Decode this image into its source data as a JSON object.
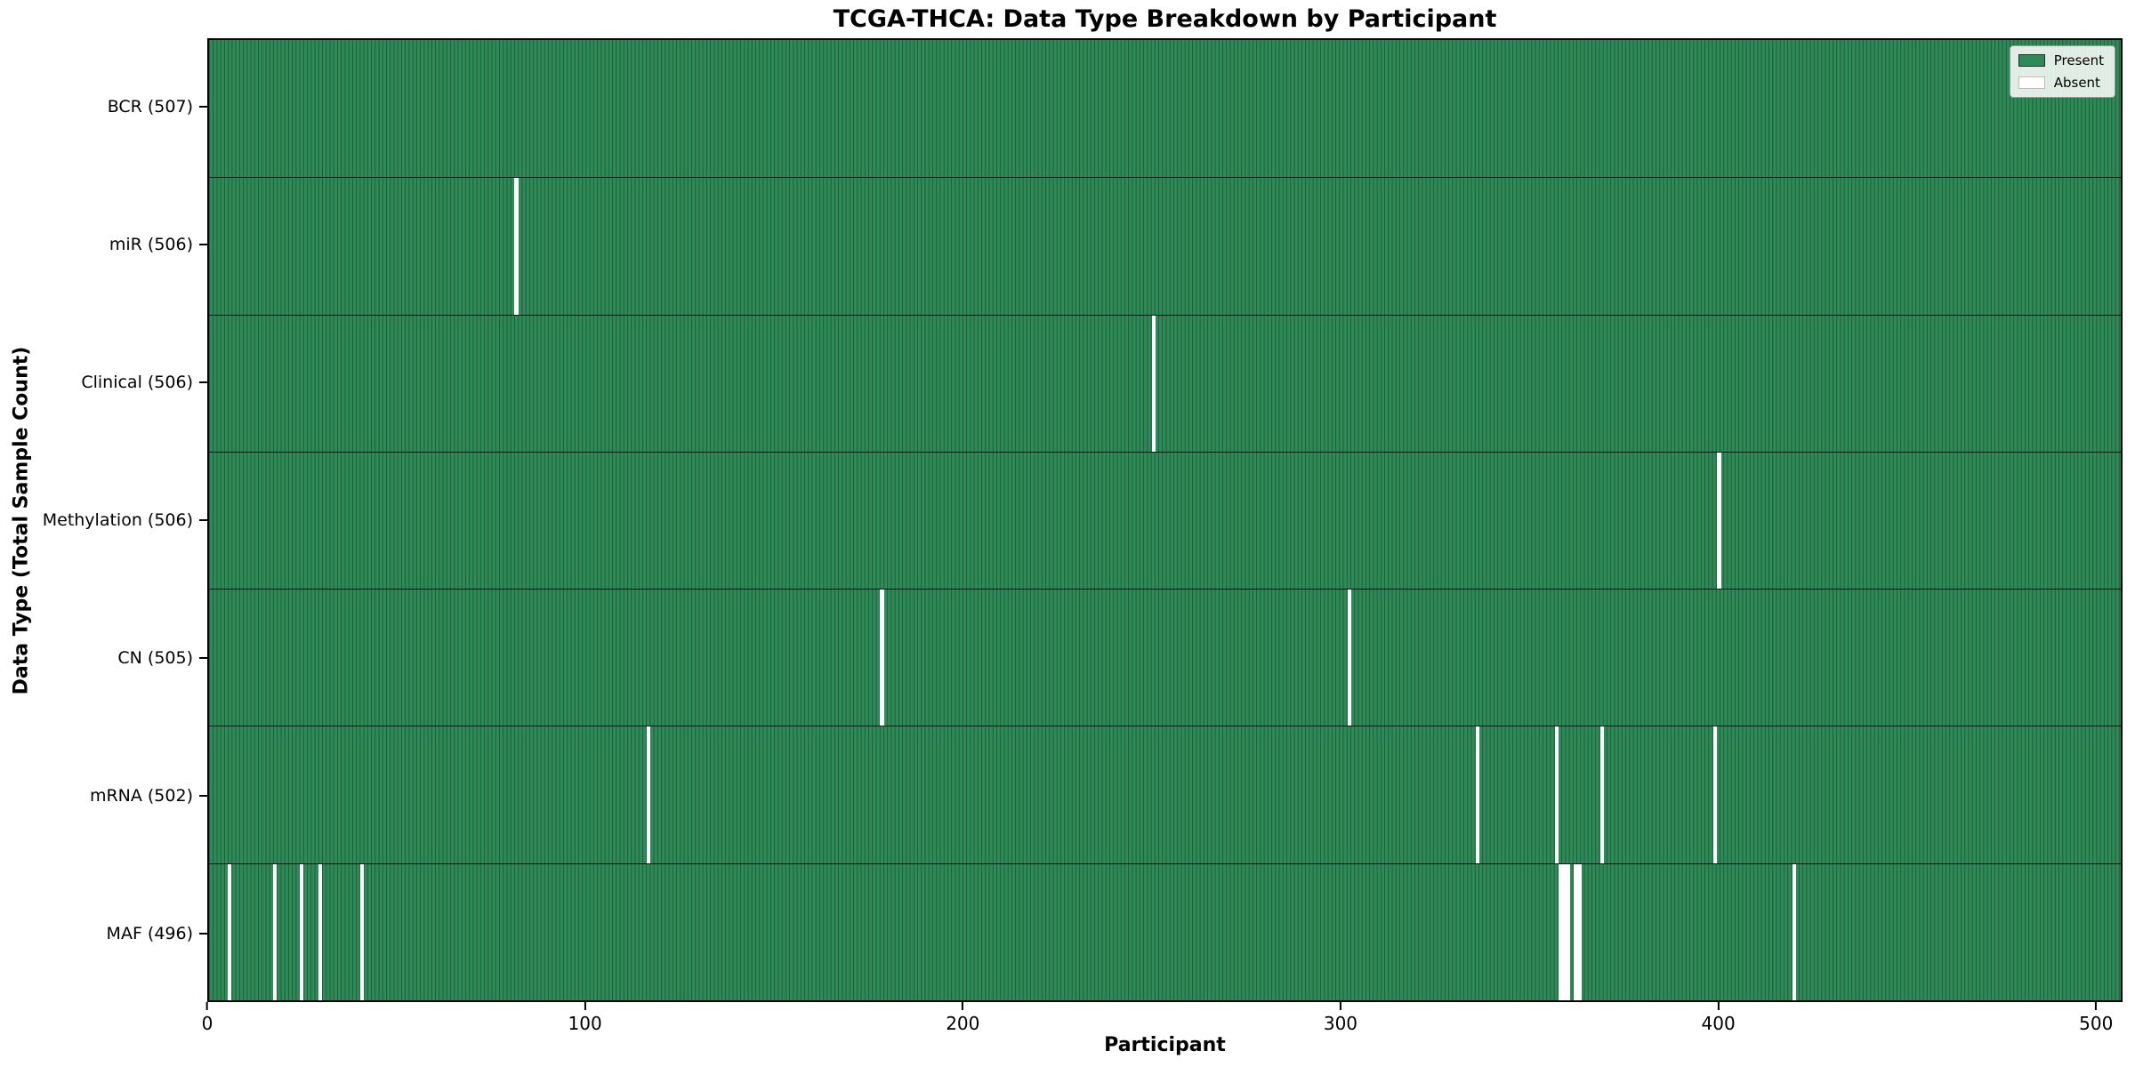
{
  "title": "TCGA-THCA: Data Type Breakdown by Participant",
  "chart_data": {
    "type": "heatmap",
    "title": "TCGA-THCA: Data Type Breakdown by Participant",
    "xlabel": "Participant",
    "ylabel": "Data Type (Total Sample Count)",
    "x_ticks": [
      0,
      100,
      200,
      300,
      400,
      500
    ],
    "n_participants": 507,
    "xlim": [
      0,
      507
    ],
    "grid": false,
    "legend": {
      "position": "upper right",
      "items": [
        {
          "label": "Present",
          "color": "#2e8b57",
          "edge": "#2a2a2a"
        },
        {
          "label": "Absent",
          "color": "#ffffff",
          "edge": "#bdbdbd"
        }
      ]
    },
    "rows": [
      {
        "label": "BCR (507)",
        "data_type": "BCR",
        "total": 507,
        "absent_participants": []
      },
      {
        "label": "miR (506)",
        "data_type": "miR",
        "total": 506,
        "absent_participants": [
          81
        ]
      },
      {
        "label": "Clinical (506)",
        "data_type": "Clinical",
        "total": 506,
        "absent_participants": [
          250
        ]
      },
      {
        "label": "Methylation (506)",
        "data_type": "Methylation",
        "total": 506,
        "absent_participants": [
          400
        ]
      },
      {
        "label": "CN (505)",
        "data_type": "CN",
        "total": 505,
        "absent_participants": [
          178,
          302
        ]
      },
      {
        "label": "mRNA (502)",
        "data_type": "mRNA",
        "total": 502,
        "absent_participants": [
          116,
          336,
          357,
          369,
          399
        ]
      },
      {
        "label": "MAF (496)",
        "data_type": "MAF",
        "total": 496,
        "absent_participants": [
          5,
          17,
          24,
          29,
          40,
          358,
          359,
          360,
          362,
          363,
          420
        ]
      }
    ],
    "colors": {
      "present": "#2e8b57",
      "cell_edge": "#1e5c3c",
      "absent": "#ffffff",
      "row_divider": "#141414",
      "axis": "#000000"
    }
  }
}
